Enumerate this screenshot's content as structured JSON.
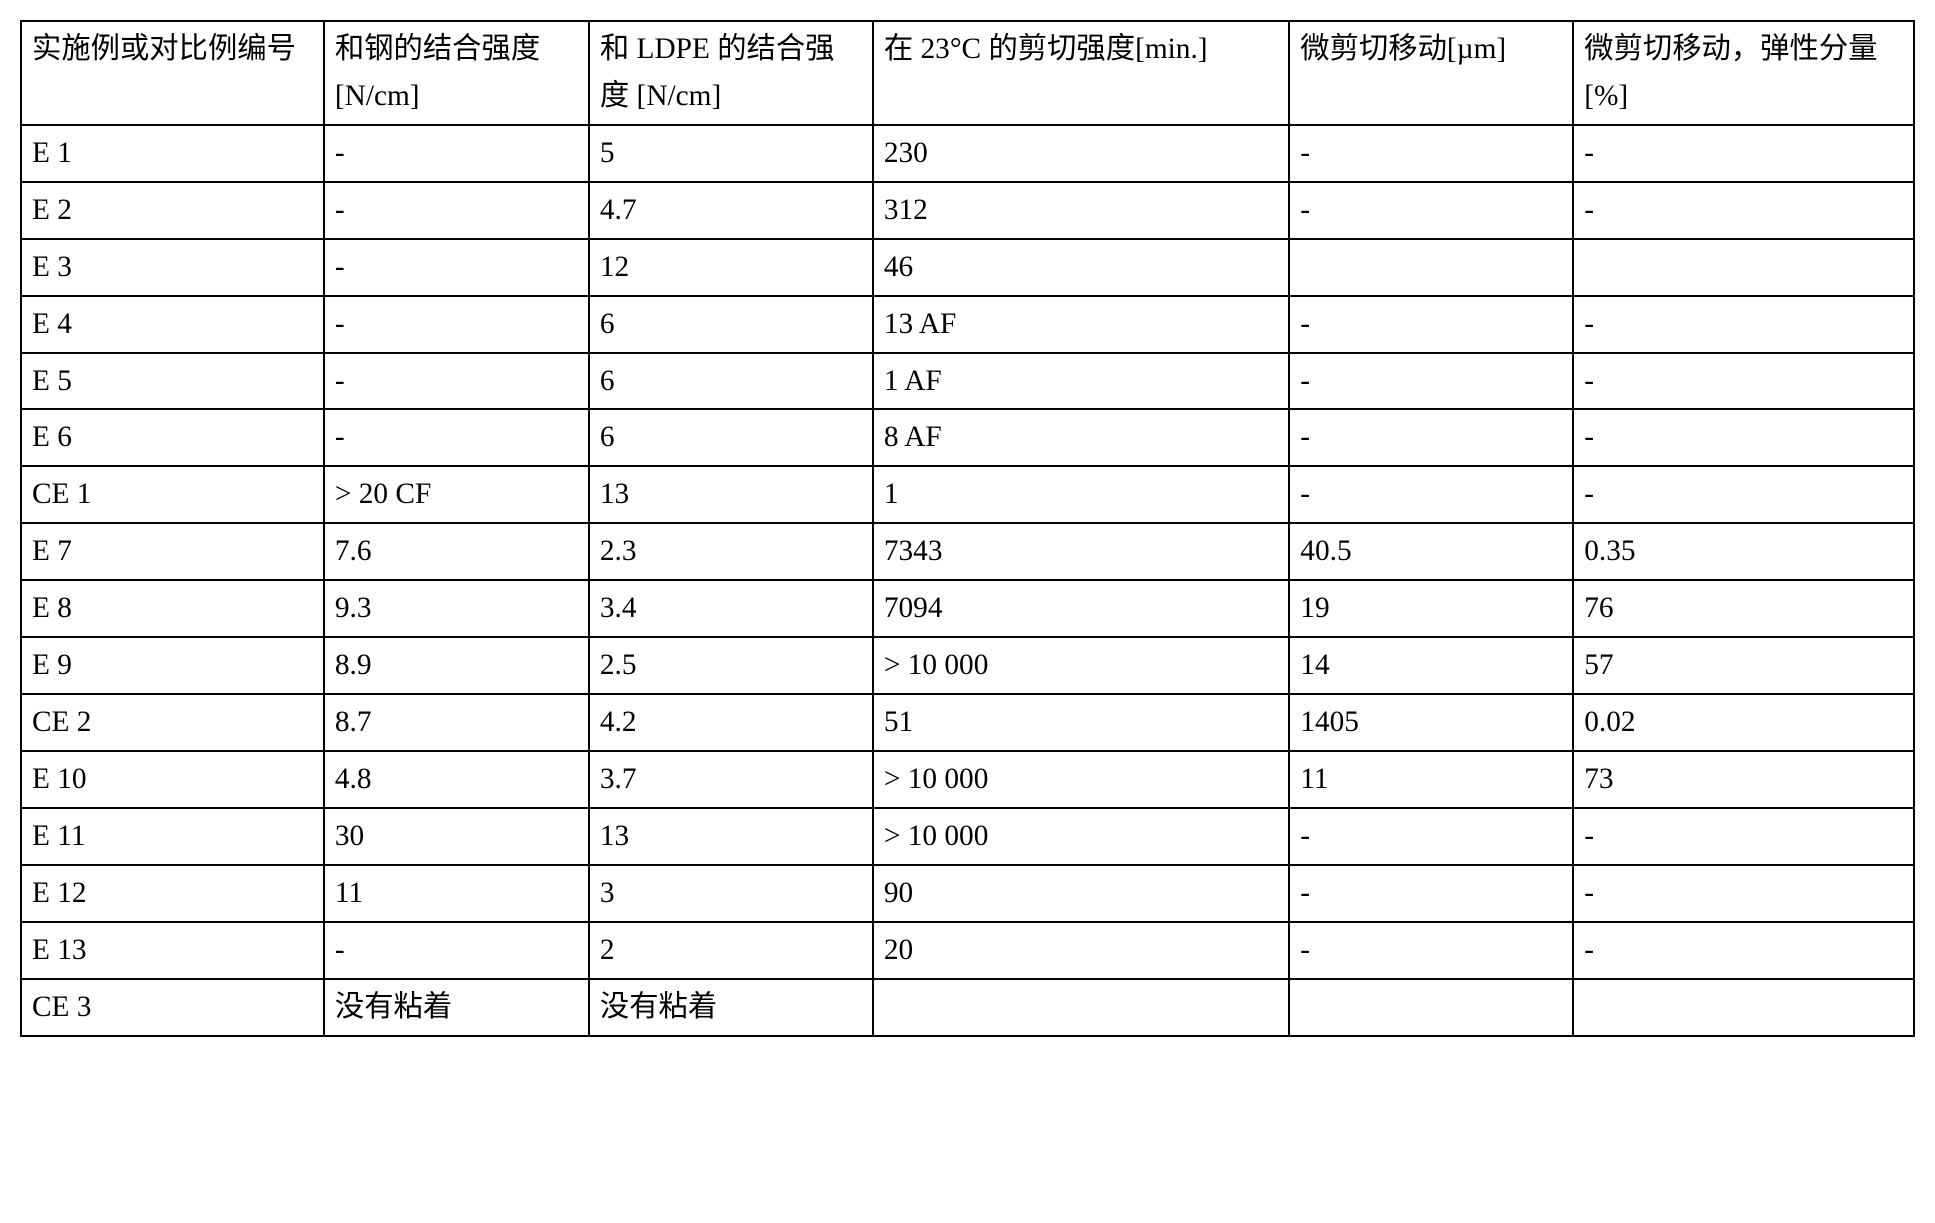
{
  "table": {
    "font_size_pt": 22,
    "border_color": "#000000",
    "background_color": "#ffffff",
    "text_color": "#000000",
    "col_widths_pct": [
      16,
      14,
      15,
      22,
      15,
      18
    ],
    "headers": [
      "实施例或对比例编号",
      "和钢的结合强度 [N/cm]",
      "和 LDPE 的结合强度 [N/cm]",
      "在 23°C 的剪切强度[min.]",
      "微剪切移动[µm]",
      "微剪切移动，弹性分量[%]"
    ],
    "rows": [
      [
        "E 1",
        "-",
        "5",
        "230",
        "-",
        "-"
      ],
      [
        "E 2",
        "-",
        "4.7",
        "312",
        "-",
        "-"
      ],
      [
        "E 3",
        "-",
        "12",
        "46",
        "",
        ""
      ],
      [
        "E 4",
        "-",
        "6",
        "13 AF",
        "-",
        "-"
      ],
      [
        "E 5",
        "-",
        "6",
        "1 AF",
        "-",
        "-"
      ],
      [
        "E 6",
        "-",
        "6",
        "8 AF",
        "-",
        "-"
      ],
      [
        "CE 1",
        "> 20 CF",
        "13",
        "1",
        "-",
        "-"
      ],
      [
        "E 7",
        "7.6",
        "2.3",
        "7343",
        "40.5",
        "0.35"
      ],
      [
        "E 8",
        "9.3",
        "3.4",
        "7094",
        "19",
        "76"
      ],
      [
        "E 9",
        "8.9",
        "2.5",
        "> 10 000",
        "14",
        "57"
      ],
      [
        "CE 2",
        "8.7",
        "4.2",
        "51",
        "1405",
        "0.02"
      ],
      [
        "E 10",
        "4.8",
        "3.7",
        "> 10 000",
        "11",
        "73"
      ],
      [
        "E 11",
        "30",
        "13",
        "> 10 000",
        "-",
        "-"
      ],
      [
        "E 12",
        "11",
        "3",
        "90",
        "-",
        "-"
      ],
      [
        "E 13",
        "-",
        "2",
        "20",
        "-",
        "-"
      ],
      [
        "CE 3",
        "没有粘着",
        "没有粘着",
        "",
        "",
        ""
      ]
    ]
  }
}
